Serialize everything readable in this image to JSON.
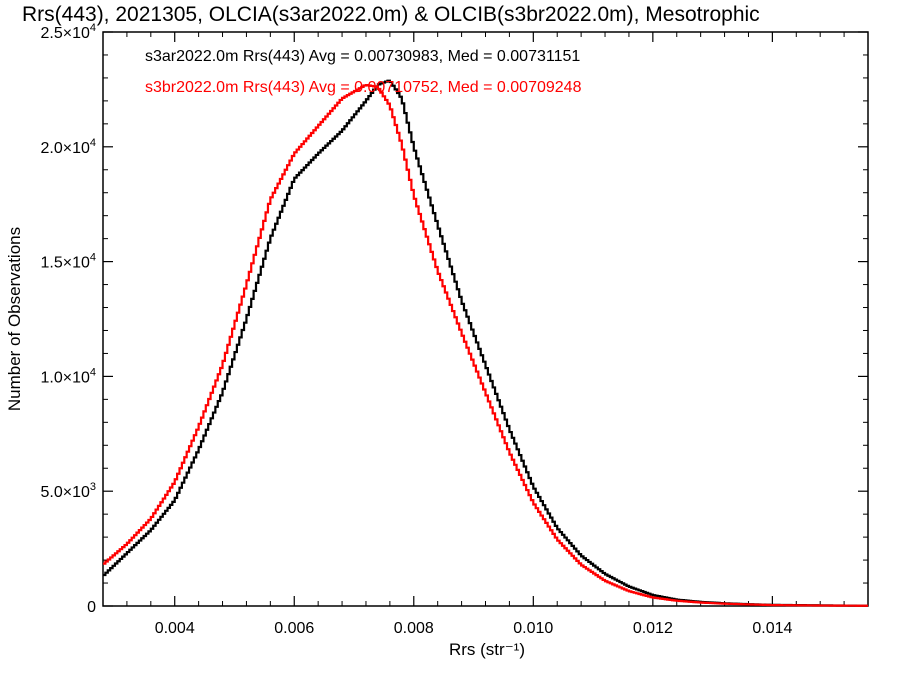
{
  "chart_data": {
    "type": "line",
    "title": "Rrs(443), 2021305, OLCIA(s3ar2022.0m) & OLCIB(s3br2022.0m), Mesotrophic",
    "xlabel": "Rrs (str⁻¹)",
    "ylabel": "Number of Observations",
    "xlim": [
      0.0028,
      0.0156
    ],
    "ylim": [
      0,
      25000
    ],
    "x_ticks": [
      {
        "value": 0.004,
        "label": "0.004"
      },
      {
        "value": 0.006,
        "label": "0.006"
      },
      {
        "value": 0.008,
        "label": "0.008"
      },
      {
        "value": 0.01,
        "label": "0.010"
      },
      {
        "value": 0.012,
        "label": "0.012"
      },
      {
        "value": 0.014,
        "label": "0.014"
      }
    ],
    "y_ticks": [
      {
        "value": 0,
        "mantissa": "0",
        "exp": ""
      },
      {
        "value": 5000,
        "mantissa": "5.0×10",
        "exp": "3"
      },
      {
        "value": 10000,
        "mantissa": "1.0×10",
        "exp": "4"
      },
      {
        "value": 15000,
        "mantissa": "1.5×10",
        "exp": "4"
      },
      {
        "value": 20000,
        "mantissa": "2.0×10",
        "exp": "4"
      },
      {
        "value": 25000,
        "mantissa": "2.5×10",
        "exp": "4"
      }
    ],
    "annotations": [
      "s3ar2022.0m Rrs(443) Avg = 0.00730983, Med = 0.00731151",
      "s3br2022.0m Rrs(443) Avg = 0.00710752, Med = 0.00709248"
    ],
    "series": [
      {
        "name": "s3ar2022.0m",
        "color": "#000000",
        "x": [
          0.0028,
          0.0032,
          0.0036,
          0.004,
          0.0044,
          0.0048,
          0.0052,
          0.0056,
          0.006,
          0.0064,
          0.0068,
          0.0072,
          0.0074,
          0.0076,
          0.0078,
          0.008,
          0.0084,
          0.0088,
          0.0092,
          0.0096,
          0.01,
          0.0104,
          0.0108,
          0.0112,
          0.0116,
          0.012,
          0.0124,
          0.0128,
          0.0132,
          0.0136,
          0.014,
          0.0144,
          0.0148,
          0.0152,
          0.0156
        ],
        "values": [
          1300,
          2300,
          3300,
          4600,
          6800,
          9300,
          12500,
          16000,
          18600,
          19700,
          20700,
          22000,
          22700,
          22900,
          22100,
          20000,
          16600,
          13300,
          10500,
          7700,
          5200,
          3400,
          2200,
          1400,
          850,
          480,
          280,
          180,
          120,
          80,
          50,
          40,
          30,
          20,
          10
        ]
      },
      {
        "name": "s3br2022.0m",
        "color": "#ff0000",
        "x": [
          0.0028,
          0.0032,
          0.0036,
          0.004,
          0.0044,
          0.0048,
          0.0052,
          0.0056,
          0.006,
          0.0064,
          0.0068,
          0.0072,
          0.0074,
          0.0076,
          0.0078,
          0.008,
          0.0084,
          0.0088,
          0.0092,
          0.0096,
          0.01,
          0.0104,
          0.0108,
          0.0112,
          0.0116,
          0.012,
          0.0124,
          0.0128,
          0.0132,
          0.0136,
          0.014,
          0.0144,
          0.0148,
          0.0152,
          0.0156
        ],
        "values": [
          1800,
          2700,
          3800,
          5400,
          7800,
          10500,
          14000,
          17700,
          19700,
          20900,
          22100,
          22700,
          22600,
          21800,
          20100,
          17900,
          14600,
          11900,
          9300,
          6700,
          4500,
          2900,
          1800,
          1100,
          650,
          370,
          230,
          150,
          100,
          70,
          40,
          30,
          20,
          15,
          10
        ]
      }
    ]
  }
}
